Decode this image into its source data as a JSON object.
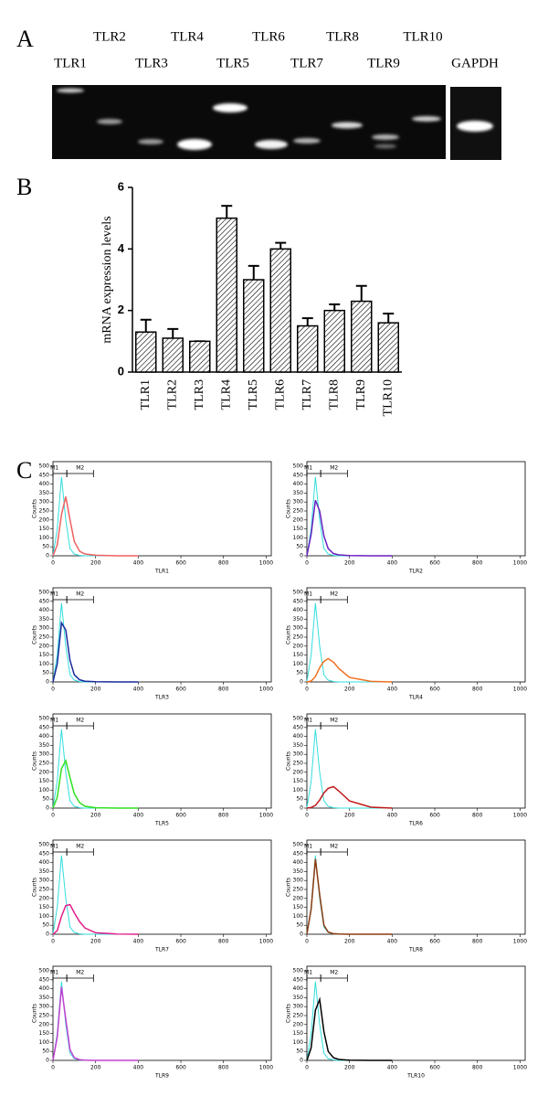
{
  "panel_labels": [
    "A",
    "B",
    "C"
  ],
  "panel_a": {
    "lanes": [
      "TLR1",
      "TLR2",
      "TLR3",
      "TLR4",
      "TLR5",
      "TLR6",
      "TLR7",
      "TLR8",
      "TLR9",
      "TLR10"
    ],
    "control": "GAPDH"
  },
  "chart_data": [
    {
      "type": "bar",
      "ylabel": "mRNA expression levels",
      "categories": [
        "TLR1",
        "TLR2",
        "TLR3",
        "TLR4",
        "TLR5",
        "TLR6",
        "TLR7",
        "TLR8",
        "TLR9",
        "TLR10"
      ],
      "values": [
        1.3,
        1.1,
        1.0,
        5.0,
        3.0,
        4.0,
        1.5,
        2.0,
        2.3,
        1.6
      ],
      "errors": [
        0.4,
        0.3,
        0,
        0.4,
        0.45,
        0.2,
        0.25,
        0.2,
        0.5,
        0.3
      ],
      "color": "#000000",
      "ylim": [
        0,
        6
      ],
      "yticks": [
        0,
        2,
        4,
        6
      ]
    },
    {
      "type": "line",
      "xlabel": "TLR1",
      "ylabel": "Counts",
      "x": [
        0,
        20,
        40,
        60,
        80,
        100,
        125,
        150,
        200,
        300,
        400
      ],
      "xlim": [
        0,
        1024
      ],
      "ylim": [
        0,
        500
      ],
      "xticks": [
        0,
        200,
        400,
        600,
        800,
        1000
      ],
      "yticks": [
        0,
        50,
        100,
        150,
        200,
        250,
        300,
        350,
        400,
        450,
        500
      ],
      "gates": [
        {
          "label": "M1",
          "range": [
            0,
            65
          ]
        },
        {
          "label": "M2",
          "range": [
            65,
            190
          ]
        }
      ],
      "series": [
        {
          "color": "#33dddd",
          "values": [
            0,
            150,
            440,
            200,
            40,
            10,
            2,
            0,
            0,
            0,
            0
          ]
        },
        {
          "color": "#f06060",
          "values": [
            0,
            60,
            230,
            330,
            200,
            80,
            25,
            10,
            3,
            0,
            0
          ]
        }
      ]
    },
    {
      "type": "line",
      "xlabel": "TLR2",
      "ylabel": "Counts",
      "x": [
        0,
        20,
        40,
        60,
        80,
        100,
        125,
        150,
        200,
        300,
        400
      ],
      "xlim": [
        0,
        1024
      ],
      "ylim": [
        0,
        500
      ],
      "xticks": [
        0,
        200,
        400,
        600,
        800,
        1000
      ],
      "yticks": [
        0,
        50,
        100,
        150,
        200,
        250,
        300,
        350,
        400,
        450,
        500
      ],
      "gates": [
        {
          "label": "M1",
          "range": [
            0,
            65
          ]
        },
        {
          "label": "M2",
          "range": [
            65,
            190
          ]
        }
      ],
      "series": [
        {
          "color": "#33dddd",
          "values": [
            0,
            150,
            440,
            200,
            40,
            10,
            2,
            0,
            0,
            0,
            0
          ]
        },
        {
          "color": "#6a1fc0",
          "values": [
            0,
            120,
            310,
            250,
            110,
            40,
            12,
            5,
            1,
            0,
            0
          ]
        }
      ]
    },
    {
      "type": "line",
      "xlabel": "TLR3",
      "ylabel": "Counts",
      "x": [
        0,
        20,
        40,
        60,
        80,
        100,
        125,
        150,
        200,
        300,
        400
      ],
      "xlim": [
        0,
        1024
      ],
      "ylim": [
        0,
        500
      ],
      "xticks": [
        0,
        200,
        400,
        600,
        800,
        1000
      ],
      "yticks": [
        0,
        50,
        100,
        150,
        200,
        250,
        300,
        350,
        400,
        450,
        500
      ],
      "gates": [
        {
          "label": "M1",
          "range": [
            0,
            65
          ]
        },
        {
          "label": "M2",
          "range": [
            65,
            190
          ]
        }
      ],
      "series": [
        {
          "color": "#33dddd",
          "values": [
            0,
            150,
            440,
            200,
            40,
            10,
            2,
            0,
            0,
            0,
            0
          ]
        },
        {
          "color": "#1a2a9a",
          "values": [
            0,
            100,
            330,
            290,
            120,
            40,
            12,
            4,
            1,
            0,
            0
          ]
        }
      ]
    },
    {
      "type": "line",
      "xlabel": "TLR4",
      "ylabel": "Counts",
      "x": [
        0,
        20,
        40,
        60,
        80,
        100,
        125,
        150,
        200,
        300,
        400
      ],
      "xlim": [
        0,
        1024
      ],
      "ylim": [
        0,
        500
      ],
      "xticks": [
        0,
        200,
        400,
        600,
        800,
        1000
      ],
      "yticks": [
        0,
        50,
        100,
        150,
        200,
        250,
        300,
        350,
        400,
        450,
        500
      ],
      "gates": [
        {
          "label": "M1",
          "range": [
            0,
            65
          ]
        },
        {
          "label": "M2",
          "range": [
            65,
            190
          ]
        }
      ],
      "series": [
        {
          "color": "#33dddd",
          "values": [
            0,
            150,
            440,
            200,
            40,
            10,
            2,
            0,
            0,
            0,
            0
          ]
        },
        {
          "color": "#f07020",
          "values": [
            0,
            5,
            30,
            80,
            115,
            130,
            110,
            75,
            25,
            3,
            0
          ]
        }
      ]
    },
    {
      "type": "line",
      "xlabel": "TLR5",
      "ylabel": "Counts",
      "x": [
        0,
        20,
        40,
        60,
        80,
        100,
        125,
        150,
        200,
        300,
        400
      ],
      "xlim": [
        0,
        1024
      ],
      "ylim": [
        0,
        500
      ],
      "xticks": [
        0,
        200,
        400,
        600,
        800,
        1000
      ],
      "yticks": [
        0,
        50,
        100,
        150,
        200,
        250,
        300,
        350,
        400,
        450,
        500
      ],
      "gates": [
        {
          "label": "M1",
          "range": [
            0,
            65
          ]
        },
        {
          "label": "M2",
          "range": [
            65,
            190
          ]
        }
      ],
      "series": [
        {
          "color": "#33dddd",
          "values": [
            0,
            150,
            440,
            200,
            40,
            10,
            2,
            0,
            0,
            0,
            0
          ]
        },
        {
          "color": "#30e020",
          "values": [
            0,
            60,
            220,
            265,
            170,
            80,
            30,
            10,
            2,
            0,
            0
          ]
        }
      ]
    },
    {
      "type": "line",
      "xlabel": "TLR6",
      "ylabel": "Counts",
      "x": [
        0,
        20,
        40,
        60,
        80,
        100,
        125,
        150,
        200,
        300,
        400
      ],
      "xlim": [
        0,
        1024
      ],
      "ylim": [
        0,
        500
      ],
      "xticks": [
        0,
        200,
        400,
        600,
        800,
        1000
      ],
      "yticks": [
        0,
        50,
        100,
        150,
        200,
        250,
        300,
        350,
        400,
        450,
        500
      ],
      "gates": [
        {
          "label": "M1",
          "range": [
            0,
            65
          ]
        },
        {
          "label": "M2",
          "range": [
            65,
            190
          ]
        }
      ],
      "series": [
        {
          "color": "#33dddd",
          "values": [
            0,
            150,
            440,
            200,
            40,
            10,
            2,
            0,
            0,
            0,
            0
          ]
        },
        {
          "color": "#c01818",
          "values": [
            0,
            3,
            15,
            45,
            85,
            110,
            120,
            95,
            40,
            5,
            0
          ]
        }
      ]
    },
    {
      "type": "line",
      "xlabel": "TLR7",
      "ylabel": "Counts",
      "x": [
        0,
        20,
        40,
        60,
        80,
        100,
        125,
        150,
        200,
        300,
        400
      ],
      "xlim": [
        0,
        1024
      ],
      "ylim": [
        0,
        500
      ],
      "xticks": [
        0,
        200,
        400,
        600,
        800,
        1000
      ],
      "yticks": [
        0,
        50,
        100,
        150,
        200,
        250,
        300,
        350,
        400,
        450,
        500
      ],
      "gates": [
        {
          "label": "M1",
          "range": [
            0,
            65
          ]
        },
        {
          "label": "M2",
          "range": [
            65,
            190
          ]
        }
      ],
      "series": [
        {
          "color": "#33dddd",
          "values": [
            0,
            150,
            440,
            200,
            40,
            10,
            2,
            0,
            0,
            0,
            0
          ]
        },
        {
          "color": "#e0208a",
          "values": [
            0,
            20,
            100,
            160,
            165,
            120,
            70,
            35,
            8,
            1,
            0
          ]
        }
      ]
    },
    {
      "type": "line",
      "xlabel": "TLR8",
      "ylabel": "Counts",
      "x": [
        0,
        20,
        40,
        60,
        80,
        100,
        125,
        150,
        200,
        300,
        400
      ],
      "xlim": [
        0,
        1024
      ],
      "ylim": [
        0,
        500
      ],
      "xticks": [
        0,
        200,
        400,
        600,
        800,
        1000
      ],
      "yticks": [
        0,
        50,
        100,
        150,
        200,
        250,
        300,
        350,
        400,
        450,
        500
      ],
      "gates": [
        {
          "label": "M1",
          "range": [
            0,
            65
          ]
        },
        {
          "label": "M2",
          "range": [
            65,
            190
          ]
        }
      ],
      "series": [
        {
          "color": "#33dddd",
          "values": [
            0,
            150,
            440,
            200,
            40,
            10,
            2,
            0,
            0,
            0,
            0
          ]
        },
        {
          "color": "#8a3a10",
          "values": [
            0,
            140,
            420,
            220,
            50,
            12,
            3,
            1,
            0,
            0,
            0
          ]
        }
      ]
    },
    {
      "type": "line",
      "xlabel": "TLR9",
      "ylabel": "Counts",
      "x": [
        0,
        20,
        40,
        60,
        80,
        100,
        125,
        150,
        200,
        300,
        400
      ],
      "xlim": [
        0,
        1024
      ],
      "ylim": [
        0,
        500
      ],
      "xticks": [
        0,
        200,
        400,
        600,
        800,
        1000
      ],
      "yticks": [
        0,
        50,
        100,
        150,
        200,
        250,
        300,
        350,
        400,
        450,
        500
      ],
      "gates": [
        {
          "label": "M1",
          "range": [
            0,
            65
          ]
        },
        {
          "label": "M2",
          "range": [
            65,
            190
          ]
        }
      ],
      "series": [
        {
          "color": "#33dddd",
          "values": [
            0,
            150,
            440,
            200,
            40,
            10,
            2,
            0,
            0,
            0,
            0
          ]
        },
        {
          "color": "#c040d0",
          "values": [
            0,
            130,
            410,
            230,
            60,
            15,
            4,
            1,
            0,
            0,
            0
          ]
        }
      ]
    },
    {
      "type": "line",
      "xlabel": "TLR10",
      "ylabel": "Counts",
      "x": [
        0,
        20,
        40,
        60,
        80,
        100,
        125,
        150,
        200,
        300,
        400
      ],
      "xlim": [
        0,
        1024
      ],
      "ylim": [
        0,
        500
      ],
      "xticks": [
        0,
        200,
        400,
        600,
        800,
        1000
      ],
      "yticks": [
        0,
        50,
        100,
        150,
        200,
        250,
        300,
        350,
        400,
        450,
        500
      ],
      "gates": [
        {
          "label": "M1",
          "range": [
            0,
            65
          ]
        },
        {
          "label": "M2",
          "range": [
            65,
            190
          ]
        }
      ],
      "series": [
        {
          "color": "#33dddd",
          "values": [
            0,
            150,
            440,
            200,
            40,
            10,
            2,
            0,
            0,
            0,
            0
          ]
        },
        {
          "color": "#000000",
          "values": [
            0,
            70,
            280,
            340,
            160,
            50,
            15,
            5,
            1,
            0,
            0
          ]
        }
      ]
    }
  ]
}
